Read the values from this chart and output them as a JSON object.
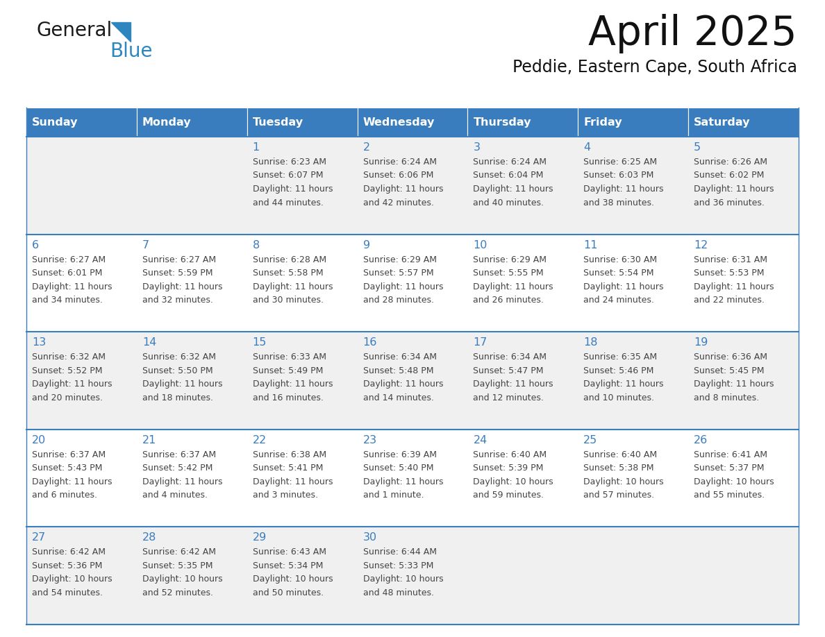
{
  "title": "April 2025",
  "subtitle": "Peddie, Eastern Cape, South Africa",
  "days_of_week": [
    "Sunday",
    "Monday",
    "Tuesday",
    "Wednesday",
    "Thursday",
    "Friday",
    "Saturday"
  ],
  "header_bg": "#3a7dbf",
  "header_text": "#ffffff",
  "row_bg_odd": "#f0f0f0",
  "row_bg_even": "#ffffff",
  "border_color": "#3a7dbf",
  "day_text_color": "#3a7dbf",
  "cell_text_color": "#444444",
  "weeks": [
    [
      {
        "day": "",
        "sunrise": "",
        "sunset": "",
        "daylight": ""
      },
      {
        "day": "",
        "sunrise": "",
        "sunset": "",
        "daylight": ""
      },
      {
        "day": "1",
        "sunrise": "Sunrise: 6:23 AM",
        "sunset": "Sunset: 6:07 PM",
        "daylight": "Daylight: 11 hours\nand 44 minutes."
      },
      {
        "day": "2",
        "sunrise": "Sunrise: 6:24 AM",
        "sunset": "Sunset: 6:06 PM",
        "daylight": "Daylight: 11 hours\nand 42 minutes."
      },
      {
        "day": "3",
        "sunrise": "Sunrise: 6:24 AM",
        "sunset": "Sunset: 6:04 PM",
        "daylight": "Daylight: 11 hours\nand 40 minutes."
      },
      {
        "day": "4",
        "sunrise": "Sunrise: 6:25 AM",
        "sunset": "Sunset: 6:03 PM",
        "daylight": "Daylight: 11 hours\nand 38 minutes."
      },
      {
        "day": "5",
        "sunrise": "Sunrise: 6:26 AM",
        "sunset": "Sunset: 6:02 PM",
        "daylight": "Daylight: 11 hours\nand 36 minutes."
      }
    ],
    [
      {
        "day": "6",
        "sunrise": "Sunrise: 6:27 AM",
        "sunset": "Sunset: 6:01 PM",
        "daylight": "Daylight: 11 hours\nand 34 minutes."
      },
      {
        "day": "7",
        "sunrise": "Sunrise: 6:27 AM",
        "sunset": "Sunset: 5:59 PM",
        "daylight": "Daylight: 11 hours\nand 32 minutes."
      },
      {
        "day": "8",
        "sunrise": "Sunrise: 6:28 AM",
        "sunset": "Sunset: 5:58 PM",
        "daylight": "Daylight: 11 hours\nand 30 minutes."
      },
      {
        "day": "9",
        "sunrise": "Sunrise: 6:29 AM",
        "sunset": "Sunset: 5:57 PM",
        "daylight": "Daylight: 11 hours\nand 28 minutes."
      },
      {
        "day": "10",
        "sunrise": "Sunrise: 6:29 AM",
        "sunset": "Sunset: 5:55 PM",
        "daylight": "Daylight: 11 hours\nand 26 minutes."
      },
      {
        "day": "11",
        "sunrise": "Sunrise: 6:30 AM",
        "sunset": "Sunset: 5:54 PM",
        "daylight": "Daylight: 11 hours\nand 24 minutes."
      },
      {
        "day": "12",
        "sunrise": "Sunrise: 6:31 AM",
        "sunset": "Sunset: 5:53 PM",
        "daylight": "Daylight: 11 hours\nand 22 minutes."
      }
    ],
    [
      {
        "day": "13",
        "sunrise": "Sunrise: 6:32 AM",
        "sunset": "Sunset: 5:52 PM",
        "daylight": "Daylight: 11 hours\nand 20 minutes."
      },
      {
        "day": "14",
        "sunrise": "Sunrise: 6:32 AM",
        "sunset": "Sunset: 5:50 PM",
        "daylight": "Daylight: 11 hours\nand 18 minutes."
      },
      {
        "day": "15",
        "sunrise": "Sunrise: 6:33 AM",
        "sunset": "Sunset: 5:49 PM",
        "daylight": "Daylight: 11 hours\nand 16 minutes."
      },
      {
        "day": "16",
        "sunrise": "Sunrise: 6:34 AM",
        "sunset": "Sunset: 5:48 PM",
        "daylight": "Daylight: 11 hours\nand 14 minutes."
      },
      {
        "day": "17",
        "sunrise": "Sunrise: 6:34 AM",
        "sunset": "Sunset: 5:47 PM",
        "daylight": "Daylight: 11 hours\nand 12 minutes."
      },
      {
        "day": "18",
        "sunrise": "Sunrise: 6:35 AM",
        "sunset": "Sunset: 5:46 PM",
        "daylight": "Daylight: 11 hours\nand 10 minutes."
      },
      {
        "day": "19",
        "sunrise": "Sunrise: 6:36 AM",
        "sunset": "Sunset: 5:45 PM",
        "daylight": "Daylight: 11 hours\nand 8 minutes."
      }
    ],
    [
      {
        "day": "20",
        "sunrise": "Sunrise: 6:37 AM",
        "sunset": "Sunset: 5:43 PM",
        "daylight": "Daylight: 11 hours\nand 6 minutes."
      },
      {
        "day": "21",
        "sunrise": "Sunrise: 6:37 AM",
        "sunset": "Sunset: 5:42 PM",
        "daylight": "Daylight: 11 hours\nand 4 minutes."
      },
      {
        "day": "22",
        "sunrise": "Sunrise: 6:38 AM",
        "sunset": "Sunset: 5:41 PM",
        "daylight": "Daylight: 11 hours\nand 3 minutes."
      },
      {
        "day": "23",
        "sunrise": "Sunrise: 6:39 AM",
        "sunset": "Sunset: 5:40 PM",
        "daylight": "Daylight: 11 hours\nand 1 minute."
      },
      {
        "day": "24",
        "sunrise": "Sunrise: 6:40 AM",
        "sunset": "Sunset: 5:39 PM",
        "daylight": "Daylight: 10 hours\nand 59 minutes."
      },
      {
        "day": "25",
        "sunrise": "Sunrise: 6:40 AM",
        "sunset": "Sunset: 5:38 PM",
        "daylight": "Daylight: 10 hours\nand 57 minutes."
      },
      {
        "day": "26",
        "sunrise": "Sunrise: 6:41 AM",
        "sunset": "Sunset: 5:37 PM",
        "daylight": "Daylight: 10 hours\nand 55 minutes."
      }
    ],
    [
      {
        "day": "27",
        "sunrise": "Sunrise: 6:42 AM",
        "sunset": "Sunset: 5:36 PM",
        "daylight": "Daylight: 10 hours\nand 54 minutes."
      },
      {
        "day": "28",
        "sunrise": "Sunrise: 6:42 AM",
        "sunset": "Sunset: 5:35 PM",
        "daylight": "Daylight: 10 hours\nand 52 minutes."
      },
      {
        "day": "29",
        "sunrise": "Sunrise: 6:43 AM",
        "sunset": "Sunset: 5:34 PM",
        "daylight": "Daylight: 10 hours\nand 50 minutes."
      },
      {
        "day": "30",
        "sunrise": "Sunrise: 6:44 AM",
        "sunset": "Sunset: 5:33 PM",
        "daylight": "Daylight: 10 hours\nand 48 minutes."
      },
      {
        "day": "",
        "sunrise": "",
        "sunset": "",
        "daylight": ""
      },
      {
        "day": "",
        "sunrise": "",
        "sunset": "",
        "daylight": ""
      },
      {
        "day": "",
        "sunrise": "",
        "sunset": "",
        "daylight": ""
      }
    ]
  ],
  "logo_text1": "General",
  "logo_text2": "Blue",
  "logo_color1": "#1a1a1a",
  "logo_color2": "#2e86c1",
  "logo_triangle_color": "#2e86c1"
}
